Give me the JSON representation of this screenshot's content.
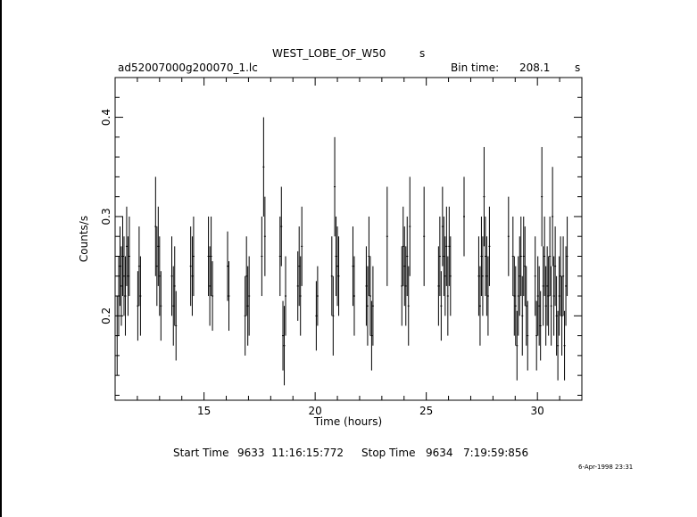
{
  "header": {
    "title": "WEST_LOBE_OF_W50",
    "title_unit": "s",
    "filename": "ad52007000g200070_1.lc",
    "bin_label": "Bin time:",
    "bin_value": "208.1",
    "bin_unit": "s"
  },
  "footer": {
    "start_label": "Start Time",
    "start_value": "9633  11:16:15:772",
    "stop_label": "Stop Time",
    "stop_value": "9634   7:19:59:856",
    "timestamp": "6-Apr-1998 23:31"
  },
  "colors": {
    "line": "#000000",
    "background": "#ffffff"
  },
  "chart_data": {
    "type": "scatter",
    "title": "WEST_LOBE_OF_W50",
    "xlabel": "Time (hours)",
    "ylabel": "Counts/s",
    "xlim": [
      11.0,
      32.0
    ],
    "ylim": [
      0.115,
      0.44
    ],
    "xticks": [
      15,
      20,
      25,
      30
    ],
    "xtick_labels": [
      "15",
      "20",
      "25",
      "30"
    ],
    "yticks": [
      0.2,
      0.3,
      0.4
    ],
    "ytick_labels": [
      "0.2",
      "0.3",
      "0.4"
    ],
    "grid": false,
    "errorbars": "vertical",
    "points": [
      [
        11.09,
        0.18,
        0.04
      ],
      [
        11.16,
        0.22,
        0.04
      ],
      [
        11.22,
        0.25,
        0.04
      ],
      [
        11.28,
        0.23,
        0.04
      ],
      [
        11.34,
        0.26,
        0.04
      ],
      [
        11.4,
        0.24,
        0.04
      ],
      [
        11.46,
        0.22,
        0.04
      ],
      [
        11.52,
        0.27,
        0.04
      ],
      [
        11.58,
        0.24,
        0.04
      ],
      [
        11.64,
        0.26,
        0.04
      ],
      [
        12.02,
        0.21,
        0.035
      ],
      [
        12.08,
        0.25,
        0.04
      ],
      [
        12.14,
        0.22,
        0.04
      ],
      [
        12.82,
        0.29,
        0.05
      ],
      [
        12.88,
        0.25,
        0.04
      ],
      [
        12.94,
        0.27,
        0.04
      ],
      [
        13.0,
        0.24,
        0.04
      ],
      [
        13.06,
        0.21,
        0.035
      ],
      [
        13.55,
        0.24,
        0.04
      ],
      [
        13.62,
        0.21,
        0.04
      ],
      [
        13.68,
        0.23,
        0.04
      ],
      [
        13.74,
        0.19,
        0.035
      ],
      [
        14.4,
        0.25,
        0.04
      ],
      [
        14.47,
        0.24,
        0.04
      ],
      [
        14.53,
        0.26,
        0.04
      ],
      [
        15.2,
        0.26,
        0.04
      ],
      [
        15.26,
        0.23,
        0.04
      ],
      [
        15.32,
        0.26,
        0.04
      ],
      [
        15.38,
        0.22,
        0.035
      ],
      [
        16.06,
        0.25,
        0.035
      ],
      [
        16.12,
        0.22,
        0.035
      ],
      [
        16.85,
        0.2,
        0.04
      ],
      [
        16.91,
        0.24,
        0.04
      ],
      [
        16.97,
        0.21,
        0.04
      ],
      [
        17.03,
        0.22,
        0.04
      ],
      [
        17.6,
        0.26,
        0.04
      ],
      [
        17.68,
        0.35,
        0.05
      ],
      [
        17.74,
        0.28,
        0.04
      ],
      [
        18.42,
        0.26,
        0.04
      ],
      [
        18.48,
        0.29,
        0.04
      ],
      [
        18.55,
        0.18,
        0.035
      ],
      [
        18.61,
        0.17,
        0.04
      ],
      [
        18.67,
        0.22,
        0.04
      ],
      [
        19.22,
        0.23,
        0.035
      ],
      [
        19.28,
        0.25,
        0.04
      ],
      [
        19.34,
        0.22,
        0.04
      ],
      [
        19.4,
        0.27,
        0.04
      ],
      [
        20.05,
        0.2,
        0.035
      ],
      [
        20.11,
        0.22,
        0.03
      ],
      [
        20.75,
        0.24,
        0.04
      ],
      [
        20.81,
        0.2,
        0.04
      ],
      [
        20.88,
        0.33,
        0.05
      ],
      [
        20.94,
        0.26,
        0.04
      ],
      [
        21.0,
        0.25,
        0.04
      ],
      [
        21.06,
        0.24,
        0.04
      ],
      [
        21.7,
        0.25,
        0.04
      ],
      [
        21.76,
        0.22,
        0.04
      ],
      [
        22.3,
        0.23,
        0.04
      ],
      [
        22.36,
        0.21,
        0.04
      ],
      [
        22.42,
        0.26,
        0.04
      ],
      [
        22.48,
        0.22,
        0.04
      ],
      [
        22.54,
        0.18,
        0.035
      ],
      [
        22.6,
        0.21,
        0.04
      ],
      [
        23.24,
        0.28,
        0.05
      ],
      [
        23.9,
        0.23,
        0.04
      ],
      [
        23.96,
        0.27,
        0.04
      ],
      [
        24.02,
        0.25,
        0.04
      ],
      [
        24.08,
        0.23,
        0.04
      ],
      [
        24.14,
        0.26,
        0.04
      ],
      [
        24.2,
        0.21,
        0.04
      ],
      [
        24.26,
        0.29,
        0.05
      ],
      [
        24.9,
        0.28,
        0.05
      ],
      [
        25.55,
        0.23,
        0.04
      ],
      [
        25.61,
        0.26,
        0.04
      ],
      [
        25.67,
        0.21,
        0.035
      ],
      [
        25.73,
        0.29,
        0.04
      ],
      [
        25.79,
        0.26,
        0.04
      ],
      [
        25.85,
        0.24,
        0.04
      ],
      [
        25.91,
        0.27,
        0.04
      ],
      [
        25.97,
        0.22,
        0.04
      ],
      [
        26.03,
        0.27,
        0.04
      ],
      [
        26.09,
        0.24,
        0.04
      ],
      [
        26.7,
        0.3,
        0.04
      ],
      [
        27.36,
        0.24,
        0.04
      ],
      [
        27.42,
        0.21,
        0.04
      ],
      [
        27.48,
        0.26,
        0.04
      ],
      [
        27.54,
        0.24,
        0.04
      ],
      [
        27.6,
        0.32,
        0.05
      ],
      [
        27.66,
        0.26,
        0.04
      ],
      [
        27.72,
        0.24,
        0.04
      ],
      [
        27.78,
        0.22,
        0.04
      ],
      [
        27.84,
        0.27,
        0.04
      ],
      [
        28.7,
        0.28,
        0.04
      ],
      [
        28.9,
        0.26,
        0.04
      ],
      [
        28.96,
        0.22,
        0.04
      ],
      [
        29.02,
        0.21,
        0.04
      ],
      [
        29.08,
        0.17,
        0.035
      ],
      [
        29.14,
        0.22,
        0.04
      ],
      [
        29.2,
        0.24,
        0.04
      ],
      [
        29.26,
        0.26,
        0.04
      ],
      [
        29.32,
        0.2,
        0.04
      ],
      [
        29.38,
        0.26,
        0.04
      ],
      [
        29.44,
        0.25,
        0.04
      ],
      [
        29.5,
        0.21,
        0.04
      ],
      [
        29.56,
        0.18,
        0.035
      ],
      [
        29.9,
        0.24,
        0.04
      ],
      [
        29.96,
        0.18,
        0.035
      ],
      [
        30.02,
        0.22,
        0.04
      ],
      [
        30.08,
        0.21,
        0.04
      ],
      [
        30.14,
        0.19,
        0.035
      ],
      [
        30.2,
        0.32,
        0.05
      ],
      [
        30.26,
        0.23,
        0.04
      ],
      [
        30.32,
        0.26,
        0.04
      ],
      [
        30.38,
        0.21,
        0.04
      ],
      [
        30.44,
        0.23,
        0.04
      ],
      [
        30.5,
        0.22,
        0.04
      ],
      [
        30.56,
        0.26,
        0.04
      ],
      [
        30.62,
        0.21,
        0.04
      ],
      [
        30.68,
        0.3,
        0.05
      ],
      [
        30.74,
        0.22,
        0.04
      ],
      [
        30.8,
        0.25,
        0.04
      ],
      [
        30.86,
        0.2,
        0.04
      ],
      [
        30.92,
        0.17,
        0.035
      ],
      [
        30.98,
        0.22,
        0.04
      ],
      [
        31.04,
        0.24,
        0.04
      ],
      [
        31.1,
        0.2,
        0.04
      ],
      [
        31.16,
        0.24,
        0.04
      ],
      [
        31.22,
        0.17,
        0.035
      ],
      [
        31.28,
        0.23,
        0.04
      ],
      [
        31.34,
        0.26,
        0.04
      ]
    ]
  }
}
